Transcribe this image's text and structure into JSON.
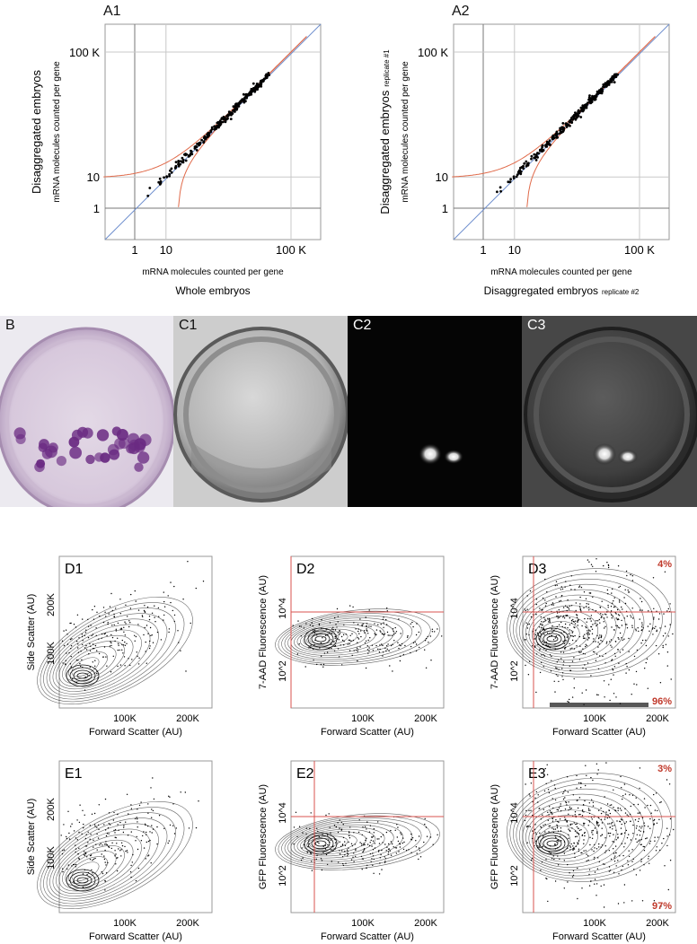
{
  "scatter_panels": [
    {
      "label": "A1",
      "ylabel_main": "Disaggregated embryos",
      "ylabel_sub": "",
      "ylabel_small": "mRNA molecules counted per gene",
      "xlabel_small": "mRNA molecules counted per gene",
      "xlabel_main": "Whole embryos",
      "xlabel_sub": "",
      "xticks": [
        "1",
        "10",
        "100 K"
      ],
      "yticks": [
        "1",
        "10",
        "100 K"
      ]
    },
    {
      "label": "A2",
      "ylabel_main": "Disaggregated embryos",
      "ylabel_sub": "replicate #1",
      "ylabel_small": "mRNA molecules counted per gene",
      "xlabel_small": "mRNA molecules counted per gene",
      "xlabel_main": "Disaggregated embryos",
      "xlabel_sub": "replicate #2",
      "xticks": [
        "1",
        "10",
        "100 K"
      ],
      "yticks": [
        "1",
        "10",
        "100 K"
      ]
    }
  ],
  "image_panels": [
    {
      "label": "B",
      "kind": "stained embryo"
    },
    {
      "label": "C1",
      "kind": "DIC embryo"
    },
    {
      "label": "C2",
      "kind": "fluorescence"
    },
    {
      "label": "C3",
      "kind": "overlay"
    }
  ],
  "flow_panels": [
    {
      "label": "D1",
      "ylabel": "Side Scatter (AU)",
      "xlabel": "Forward Scatter (AU)",
      "yticks": [
        "100K",
        "200K"
      ],
      "xticks": [
        "100K",
        "200K"
      ],
      "gate": false,
      "pct_top": "",
      "pct_bottom": ""
    },
    {
      "label": "D2",
      "ylabel": "7-AAD Fluorescence  (AU)",
      "xlabel": "Forward Scatter (AU)",
      "yticks": [
        "10^2",
        "10^4"
      ],
      "xticks": [
        "100K",
        "200K"
      ],
      "gate": true,
      "pct_top": "",
      "pct_bottom": ""
    },
    {
      "label": "D3",
      "ylabel": "7-AAD Fluorescence  (AU)",
      "xlabel": "Forward Scatter (AU)",
      "yticks": [
        "10^2",
        "10^4"
      ],
      "xticks": [
        "100K",
        "200K"
      ],
      "gate": true,
      "pct_top": "4%",
      "pct_bottom": "96%"
    },
    {
      "label": "E1",
      "ylabel": "Side Scatter (AU)",
      "xlabel": "Forward Scatter (AU)",
      "yticks": [
        "100K",
        "200K"
      ],
      "xticks": [
        "100K",
        "200K"
      ],
      "gate": false,
      "pct_top": "",
      "pct_bottom": ""
    },
    {
      "label": "E2",
      "ylabel": "GFP Fluorescence  (AU)",
      "xlabel": "Forward Scatter (AU)",
      "yticks": [
        "10^2",
        "10^4"
      ],
      "xticks": [
        "100K",
        "200K"
      ],
      "gate": true,
      "pct_top": "",
      "pct_bottom": ""
    },
    {
      "label": "E3",
      "ylabel": "GFP Fluorescence  (AU)",
      "xlabel": "Forward Scatter (AU)",
      "yticks": [
        "10^2",
        "10^4"
      ],
      "xticks": [
        "100K",
        "200K"
      ],
      "gate": true,
      "pct_top": "3%",
      "pct_bottom": "97%"
    }
  ],
  "colors": {
    "fit_line": "#6f8fce",
    "bound_lines": "#e06a4a",
    "gate_lines": "#d9534f",
    "pct_text": "#c0392b",
    "stain": "#6a2a82"
  }
}
